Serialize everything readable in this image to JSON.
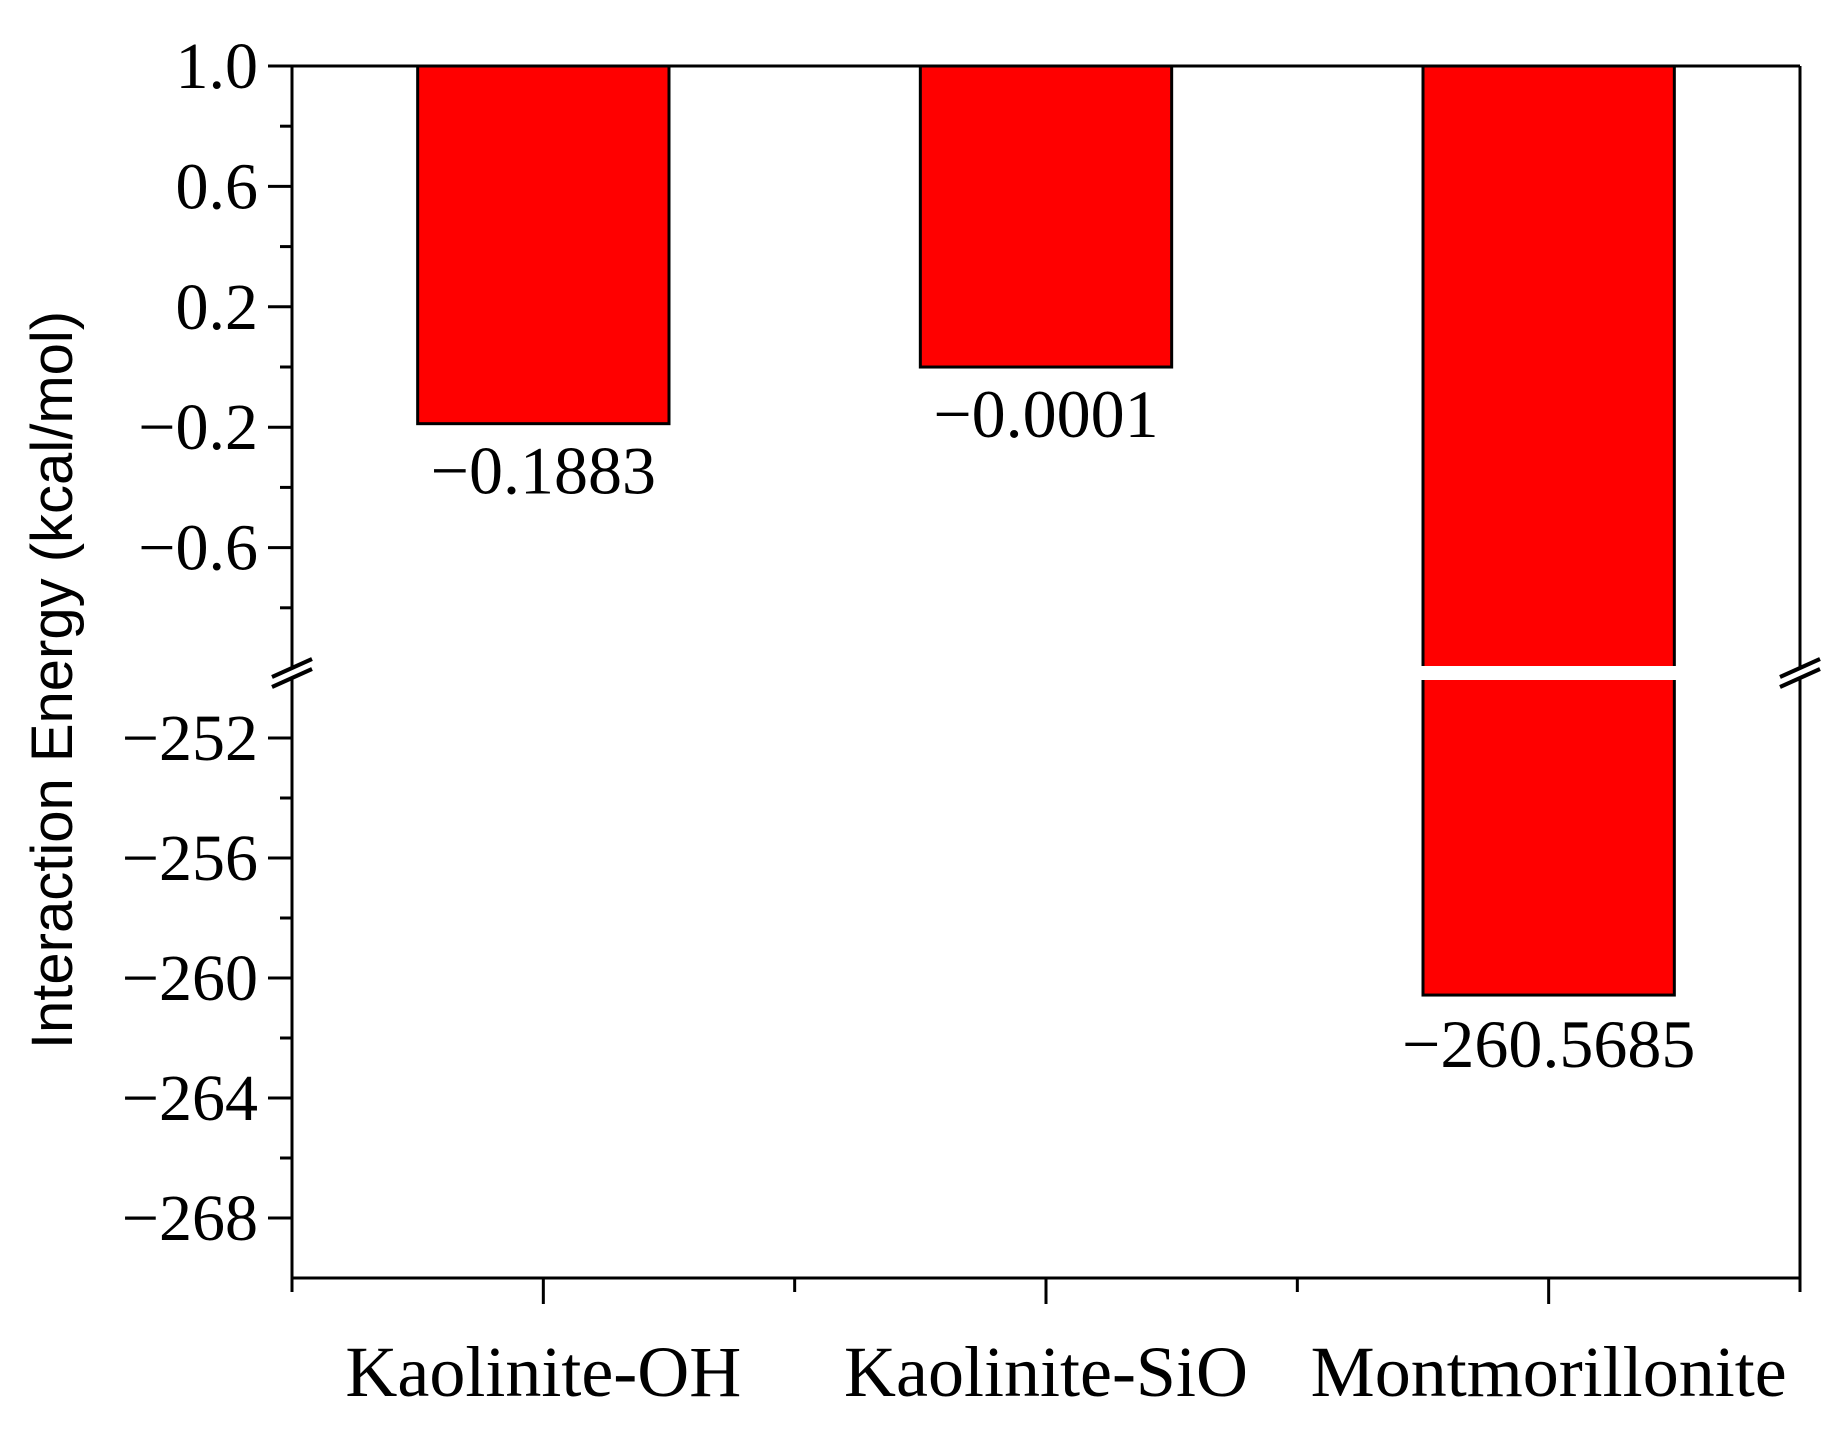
{
  "chart_data": {
    "type": "bar",
    "title": "",
    "xlabel": "",
    "ylabel": "Interaction Energy (kcal/mol)",
    "categories": [
      "Kaolinite-OH",
      "Kaolinite-SiO",
      "Montmorillonite"
    ],
    "values": [
      -0.1883,
      -0.0001,
      -260.5685
    ],
    "data_labels": [
      "−0.1883",
      "−0.0001",
      "−260.5685"
    ],
    "bar_color": "#ff0000",
    "bar_baseline": 1.0,
    "y_axis_break": true,
    "y_segments": [
      {
        "ylim": [
          -1.0,
          1.0
        ],
        "ticks": [
          1.0,
          0.6,
          0.2,
          -0.2,
          -0.6
        ],
        "tick_labels": [
          "1.0",
          "0.6",
          "0.2",
          "−0.2",
          "−0.6"
        ]
      },
      {
        "ylim": [
          -270,
          -250
        ],
        "ticks": [
          -252,
          -256,
          -260,
          -264,
          -268
        ],
        "tick_labels": [
          "−252",
          "−256",
          "−260",
          "−264",
          "−268"
        ]
      }
    ],
    "grid": false,
    "legend": "none"
  }
}
